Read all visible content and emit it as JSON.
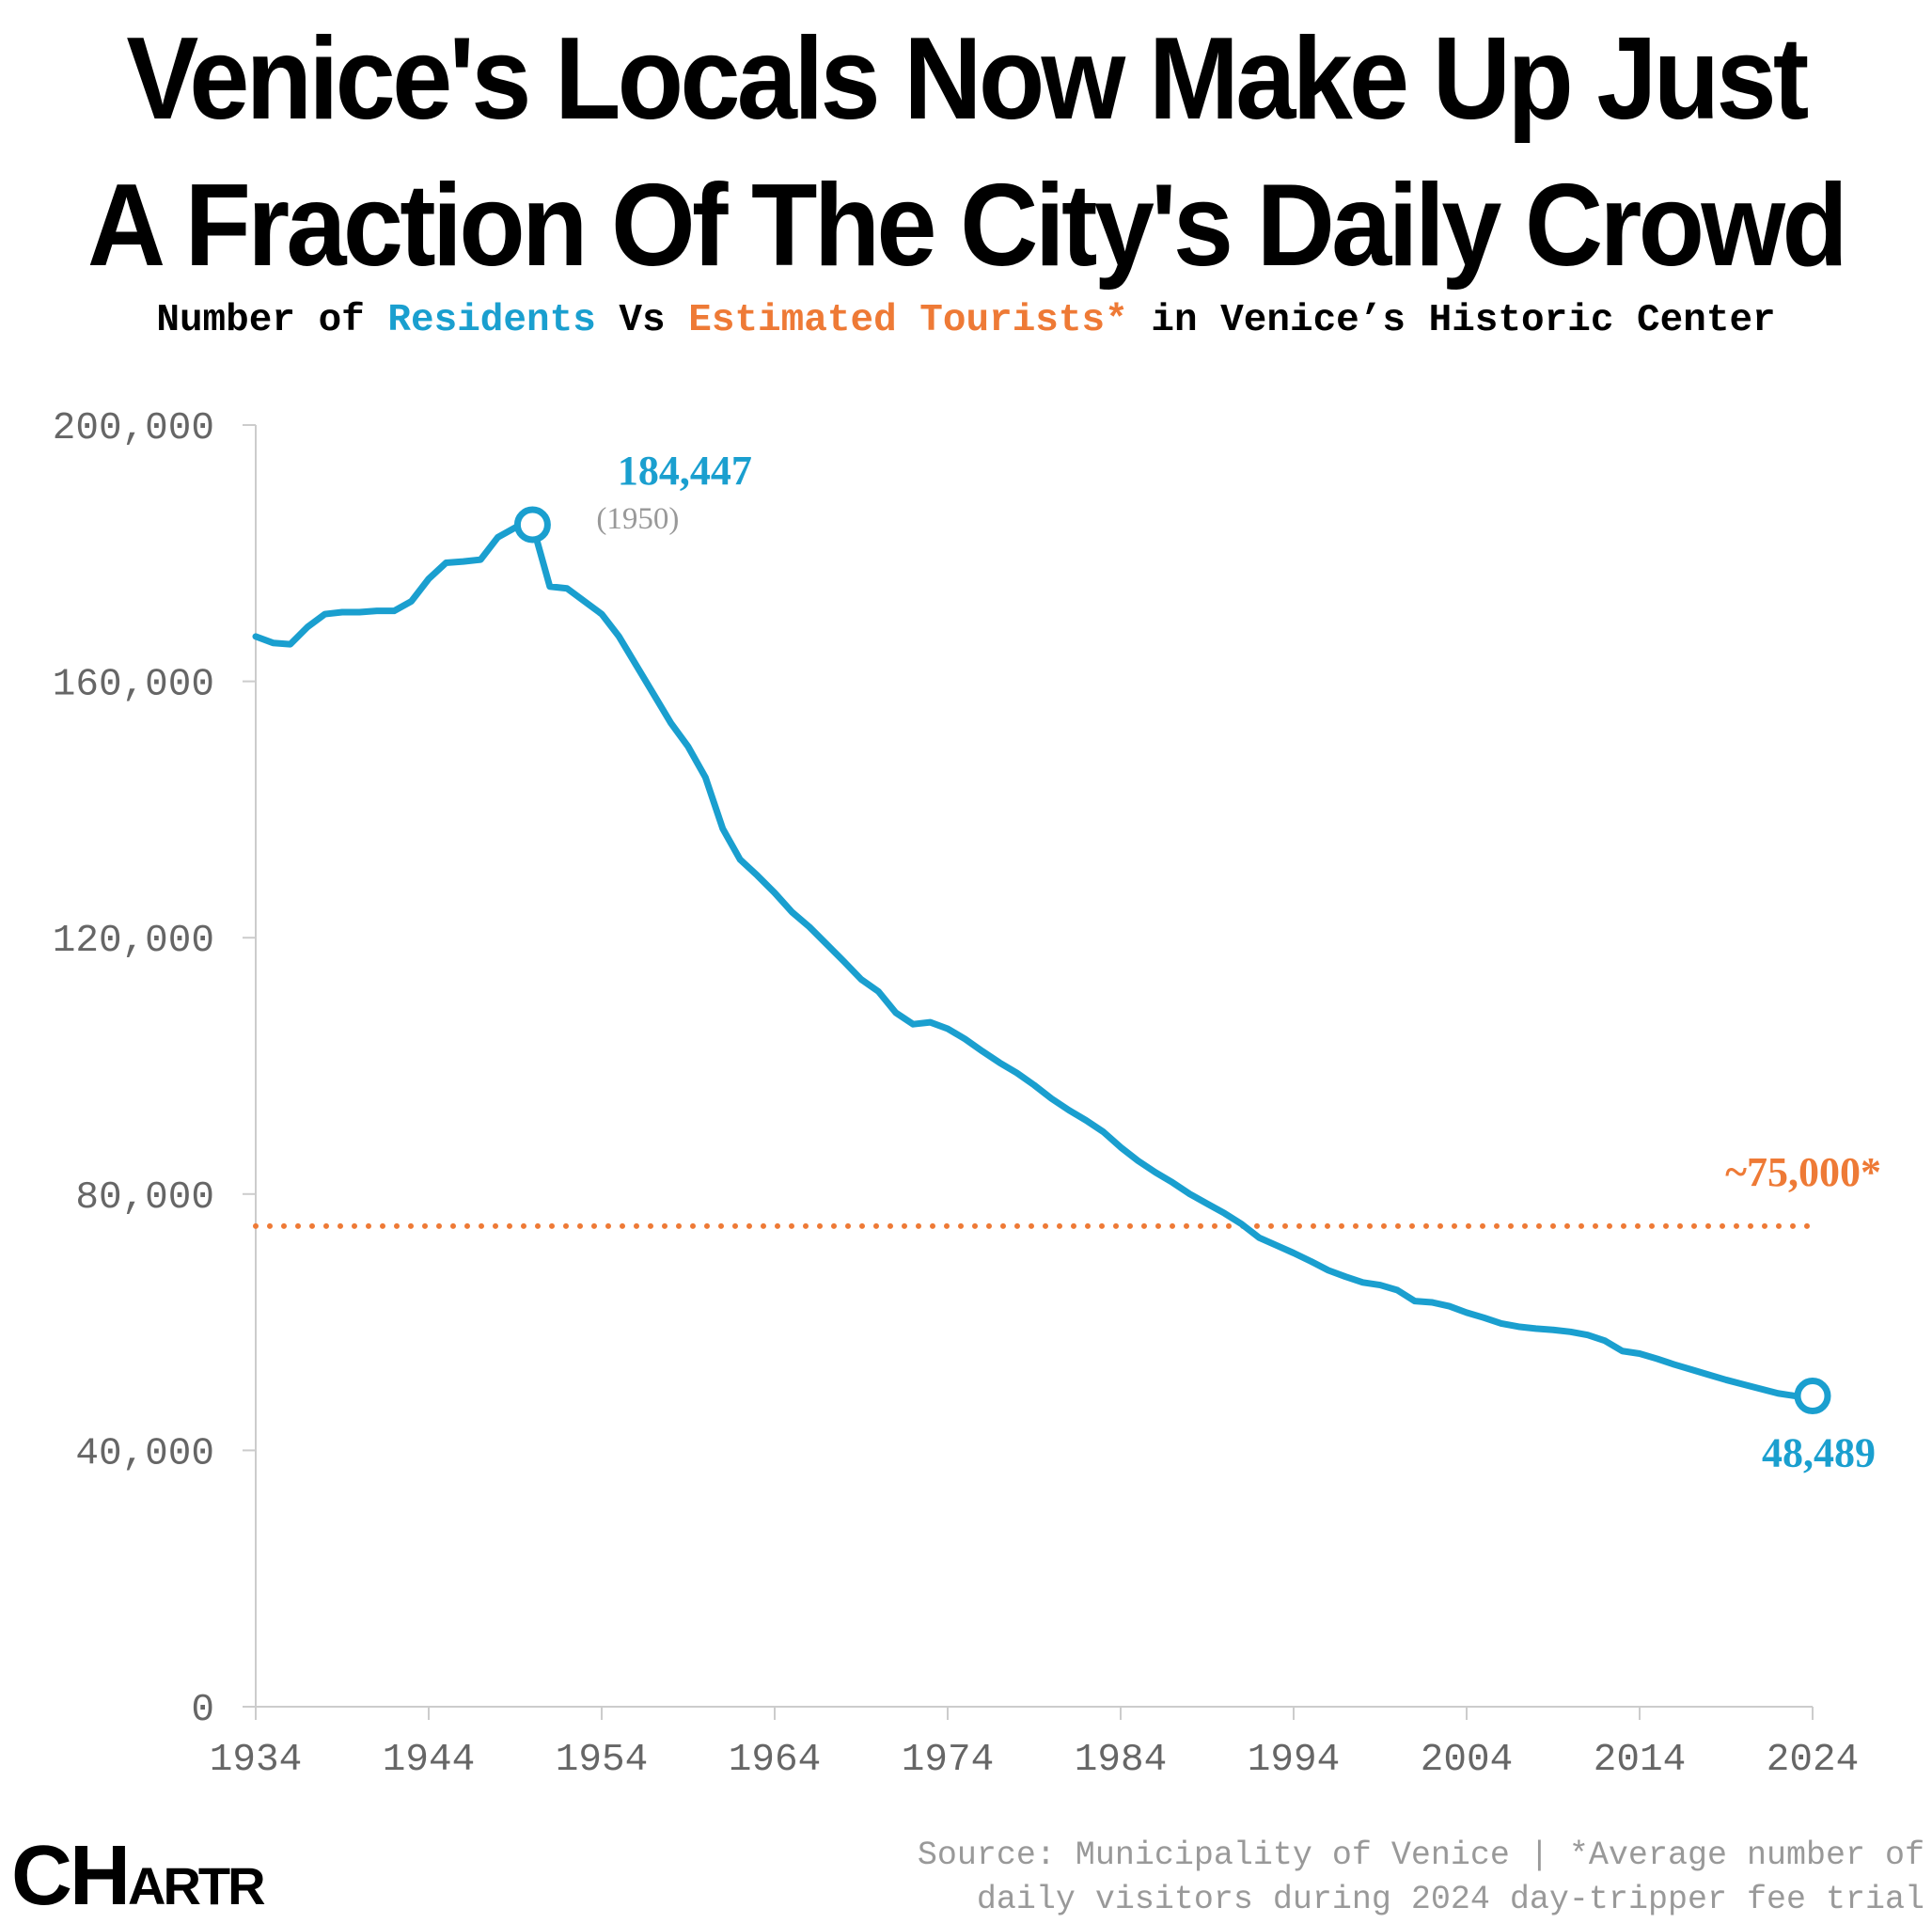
{
  "title_line1": "Venice's Locals Now Make Up Just",
  "title_line2": "A Fraction Of The City's Daily Crowd",
  "subtitle": {
    "part1": "Number of ",
    "residents": "Residents",
    "part2": " Vs ",
    "tourists": "Estimated Tourists*",
    "part3": " in Venice’s Historic Center"
  },
  "colors": {
    "residents": "#1a9fcf",
    "tourists": "#ee7a36",
    "axis": "#cccccc",
    "tick_text": "#666666"
  },
  "chart_data": {
    "type": "line",
    "title": "Number of Residents Vs Estimated Tourists* in Venice’s Historic Center",
    "xlabel": "",
    "ylabel": "",
    "xlim": [
      1934,
      2024
    ],
    "ylim": [
      0,
      200000
    ],
    "x_ticks": [
      "1934",
      "1944",
      "1954",
      "1964",
      "1974",
      "1984",
      "1994",
      "2004",
      "2014",
      "2024"
    ],
    "y_ticks": [
      "0",
      "40,000",
      "80,000",
      "120,000",
      "160,000",
      "200,000"
    ],
    "y_tick_values": [
      0,
      40000,
      80000,
      120000,
      160000,
      200000
    ],
    "series": [
      {
        "name": "Residents",
        "x": [
          1934,
          1935,
          1936,
          1937,
          1938,
          1939,
          1940,
          1941,
          1942,
          1943,
          1944,
          1945,
          1946,
          1947,
          1948,
          1949,
          1950,
          1951,
          1952,
          1953,
          1954,
          1955,
          1956,
          1957,
          1958,
          1959,
          1960,
          1961,
          1962,
          1963,
          1964,
          1965,
          1966,
          1967,
          1968,
          1969,
          1970,
          1971,
          1972,
          1973,
          1974,
          1975,
          1976,
          1977,
          1978,
          1979,
          1980,
          1981,
          1982,
          1983,
          1984,
          1985,
          1986,
          1987,
          1988,
          1989,
          1990,
          1991,
          1992,
          1993,
          1994,
          1995,
          1996,
          1997,
          1998,
          1999,
          2000,
          2001,
          2002,
          2003,
          2004,
          2005,
          2006,
          2007,
          2008,
          2009,
          2010,
          2011,
          2012,
          2013,
          2014,
          2015,
          2016,
          2017,
          2018,
          2019,
          2020,
          2021,
          2022,
          2023,
          2024
        ],
        "values": [
          167000,
          166000,
          165800,
          168500,
          170500,
          170800,
          170800,
          171000,
          171000,
          172500,
          176000,
          178500,
          178700,
          179000,
          182500,
          184000,
          184447,
          174800,
          174500,
          172500,
          170500,
          167000,
          162500,
          158000,
          153500,
          149800,
          145000,
          137000,
          132200,
          129700,
          127000,
          124000,
          121700,
          119000,
          116300,
          113500,
          111600,
          108300,
          106500,
          106800,
          105800,
          104200,
          102300,
          100500,
          98900,
          97000,
          94900,
          93100,
          91500,
          89700,
          87300,
          85200,
          83400,
          81800,
          80000,
          78500,
          77000,
          75300,
          73200,
          72000,
          70800,
          69500,
          68100,
          67100,
          66200,
          65800,
          65000,
          63300,
          63100,
          62500,
          61500,
          60700,
          59800,
          59300,
          59000,
          58800,
          58500,
          58000,
          57100,
          55500,
          55100,
          54300,
          53400,
          52600,
          51800,
          51000,
          50300,
          49600,
          48900,
          48489,
          48489
        ]
      },
      {
        "name": "Estimated Tourists*",
        "x": [
          1934,
          2024
        ],
        "values": [
          75000,
          75000
        ]
      }
    ],
    "annotations": {
      "peak_value": "184,447",
      "peak_year": "(1950)",
      "end_value": "48,489",
      "tourist_label": "~75,000*"
    }
  },
  "source_line1": "Source: Municipality of Venice | *Average number of",
  "source_line2": "daily visitors during 2024 day-tripper fee trial",
  "logo": {
    "big1": "C",
    "big2": "H",
    "small": "ARTR"
  }
}
